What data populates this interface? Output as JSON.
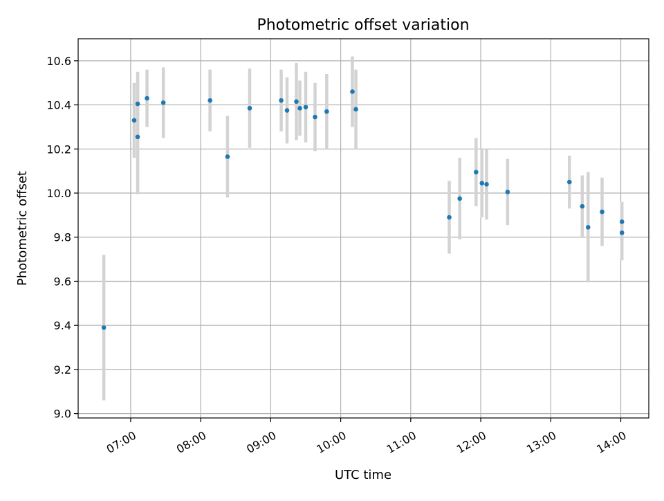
{
  "chart_data": {
    "type": "scatter",
    "title": "Photometric offset variation",
    "xlabel": "UTC time",
    "ylabel": "Photometric offset",
    "xlim": [
      "06:15",
      "14:24"
    ],
    "ylim": [
      8.98,
      10.7
    ],
    "x_ticks": [
      "07:00",
      "08:00",
      "09:00",
      "10:00",
      "11:00",
      "12:00",
      "13:00",
      "14:00"
    ],
    "y_ticks": [
      9.0,
      9.2,
      9.4,
      9.6,
      9.8,
      10.0,
      10.2,
      10.4,
      10.6
    ],
    "y_tick_labels": [
      "9.0",
      "9.2",
      "9.4",
      "9.6",
      "9.8",
      "10.0",
      "10.2",
      "10.4",
      "10.6"
    ],
    "grid": true,
    "marker_color": "#1f77b4",
    "errorbar_color": "#d3d3d3",
    "points": [
      {
        "t": "06:37",
        "y": 9.39,
        "err": 0.33
      },
      {
        "t": "07:03",
        "y": 10.33,
        "err": 0.17
      },
      {
        "t": "07:06",
        "y": 10.405,
        "err": 0.145
      },
      {
        "t": "07:06",
        "y": 10.255,
        "err": 0.26
      },
      {
        "t": "07:14",
        "y": 10.43,
        "err": 0.13
      },
      {
        "t": "07:28",
        "y": 10.41,
        "err": 0.16
      },
      {
        "t": "08:08",
        "y": 10.42,
        "err": 0.14
      },
      {
        "t": "08:23",
        "y": 10.165,
        "err": 0.185
      },
      {
        "t": "08:42",
        "y": 10.385,
        "err": 0.18
      },
      {
        "t": "09:09",
        "y": 10.42,
        "err": 0.14
      },
      {
        "t": "09:14",
        "y": 10.375,
        "err": 0.15
      },
      {
        "t": "09:22",
        "y": 10.415,
        "err": 0.175
      },
      {
        "t": "09:25",
        "y": 10.385,
        "err": 0.125
      },
      {
        "t": "09:30",
        "y": 10.39,
        "err": 0.16
      },
      {
        "t": "09:38",
        "y": 10.345,
        "err": 0.155
      },
      {
        "t": "09:48",
        "y": 10.37,
        "err": 0.17
      },
      {
        "t": "10:10",
        "y": 10.46,
        "err": 0.16
      },
      {
        "t": "10:13",
        "y": 10.38,
        "err": 0.18
      },
      {
        "t": "11:33",
        "y": 9.89,
        "err": 0.165
      },
      {
        "t": "11:42",
        "y": 9.975,
        "err": 0.185
      },
      {
        "t": "11:56",
        "y": 10.095,
        "err": 0.155
      },
      {
        "t": "12:01",
        "y": 10.045,
        "err": 0.155
      },
      {
        "t": "12:05",
        "y": 10.04,
        "err": 0.16
      },
      {
        "t": "12:23",
        "y": 10.005,
        "err": 0.15
      },
      {
        "t": "13:16",
        "y": 10.05,
        "err": 0.12
      },
      {
        "t": "13:27",
        "y": 9.94,
        "err": 0.14
      },
      {
        "t": "13:32",
        "y": 9.845,
        "err": 0.25
      },
      {
        "t": "13:44",
        "y": 9.915,
        "err": 0.155
      },
      {
        "t": "14:01",
        "y": 9.87,
        "err": 0.09
      },
      {
        "t": "14:01",
        "y": 9.82,
        "err": 0.125
      }
    ]
  }
}
